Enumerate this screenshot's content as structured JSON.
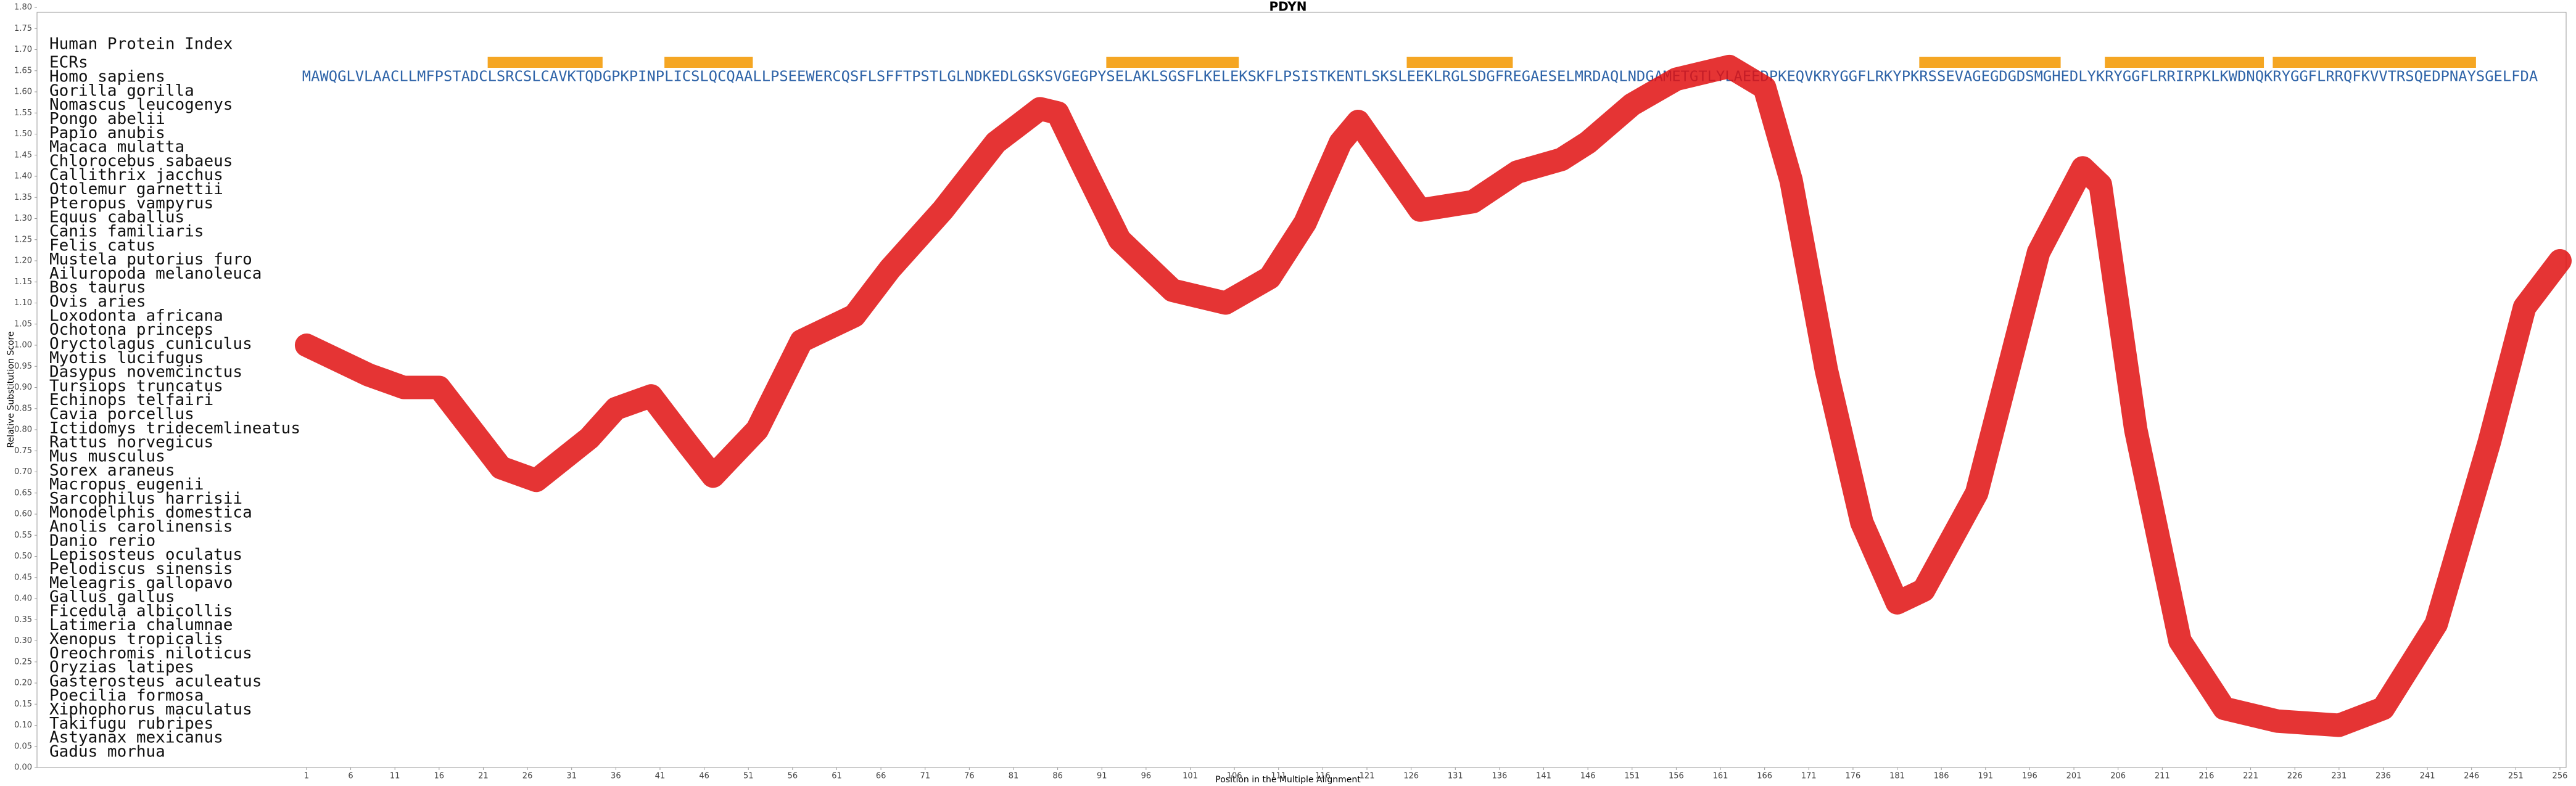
{
  "chart_data": {
    "type": "line",
    "title": "PDYN",
    "xlabel": "Position in the Multiple Alignment",
    "ylabel": "Relative Substitution Score",
    "color": "#e01010",
    "x": [
      1,
      8,
      12,
      16,
      23,
      27,
      33,
      36,
      40,
      44,
      47,
      52,
      57,
      63,
      67,
      73,
      79,
      84,
      86,
      89,
      93,
      99,
      105,
      110,
      114,
      118,
      120,
      124,
      127,
      133,
      138,
      143,
      146,
      151,
      156,
      162,
      166,
      169,
      173,
      177,
      181,
      184,
      190,
      197,
      202,
      204,
      208,
      213,
      218,
      224,
      231,
      236,
      242,
      248,
      252,
      256
    ],
    "values": [
      1.0,
      0.93,
      0.9,
      0.9,
      0.71,
      0.68,
      0.78,
      0.85,
      0.88,
      0.77,
      0.69,
      0.8,
      1.01,
      1.07,
      1.18,
      1.32,
      1.48,
      1.56,
      1.55,
      1.42,
      1.25,
      1.13,
      1.1,
      1.16,
      1.29,
      1.48,
      1.53,
      1.41,
      1.32,
      1.34,
      1.41,
      1.44,
      1.48,
      1.57,
      1.63,
      1.66,
      1.61,
      1.39,
      0.94,
      0.58,
      0.39,
      0.42,
      0.65,
      1.22,
      1.42,
      1.38,
      0.8,
      0.3,
      0.14,
      0.11,
      0.1,
      0.14,
      0.34,
      0.77,
      1.09,
      1.2
    ],
    "xlim": [
      -29.5,
      256.7
    ],
    "ylim": [
      0,
      1.8
    ],
    "xticks": [
      1,
      6,
      11,
      16,
      21,
      26,
      31,
      36,
      41,
      46,
      51,
      56,
      61,
      66,
      71,
      76,
      81,
      86,
      91,
      96,
      101,
      106,
      111,
      116,
      121,
      126,
      131,
      136,
      141,
      146,
      151,
      156,
      161,
      166,
      171,
      176,
      181,
      186,
      191,
      196,
      201,
      206,
      211,
      216,
      221,
      226,
      231,
      236,
      241,
      246,
      251,
      256
    ],
    "yticks": [
      {
        "value": 0,
        "label": "0.00"
      },
      {
        "value": 0.05,
        "label": "0.05"
      },
      {
        "value": 0.1,
        "label": "0.10"
      },
      {
        "value": 0.15,
        "label": "0.15"
      },
      {
        "value": 0.2,
        "label": "0.20"
      },
      {
        "value": 0.25,
        "label": "0.25"
      },
      {
        "value": 0.3,
        "label": "0.30"
      },
      {
        "value": 0.35,
        "label": "0.35"
      },
      {
        "value": 0.4,
        "label": "0.40"
      },
      {
        "value": 0.45,
        "label": "0.45"
      },
      {
        "value": 0.5,
        "label": "0.50"
      },
      {
        "value": 0.55,
        "label": "0.55"
      },
      {
        "value": 0.6,
        "label": "0.60"
      },
      {
        "value": 0.65,
        "label": "0.65"
      },
      {
        "value": 0.7,
        "label": "0.70"
      },
      {
        "value": 0.75,
        "label": "0.75"
      },
      {
        "value": 0.8,
        "label": "0.80"
      },
      {
        "value": 0.85,
        "label": "0.85"
      },
      {
        "value": 0.9,
        "label": "0.90"
      },
      {
        "value": 0.95,
        "label": "0.95"
      },
      {
        "value": 1.0,
        "label": "1.00"
      },
      {
        "value": 1.05,
        "label": "1.05"
      },
      {
        "value": 1.1,
        "label": "1.10"
      },
      {
        "value": 1.15,
        "label": "1.15"
      },
      {
        "value": 1.2,
        "label": "1.20"
      },
      {
        "value": 1.25,
        "label": "1.25"
      },
      {
        "value": 1.3,
        "label": "1.30"
      },
      {
        "value": 1.35,
        "label": "1.35"
      },
      {
        "value": 1.4,
        "label": "1.40"
      },
      {
        "value": 1.45,
        "label": "1.45"
      },
      {
        "value": 1.5,
        "label": "1.50"
      },
      {
        "value": 1.55,
        "label": "1.55"
      },
      {
        "value": 1.6,
        "label": "1.60"
      },
      {
        "value": 1.65,
        "label": "1.65"
      },
      {
        "value": 1.7,
        "label": "1.70"
      },
      {
        "value": 1.75,
        "label": "1.75"
      },
      {
        "value": 1.8,
        "label": "1.80"
      }
    ]
  },
  "alignment": {
    "index_label": "Human Protein Index",
    "ecr_label": "ECRs",
    "ecr_color": "#f5a623",
    "ecr_regions": [
      [
        22,
        34
      ],
      [
        42,
        51
      ],
      [
        92,
        106
      ],
      [
        126,
        137
      ],
      [
        184,
        199
      ],
      [
        205,
        222
      ],
      [
        224,
        246
      ]
    ],
    "species": [
      "Homo sapiens",
      "Gorilla gorilla",
      "Nomascus leucogenys",
      "Pongo abelii",
      "Papio anubis",
      "Macaca mulatta",
      "Chlorocebus sabaeus",
      "Callithrix jacchus",
      "Otolemur garnettii",
      "Pteropus vampyrus",
      "Equus caballus",
      "Canis familiaris",
      "Felis catus",
      "Mustela putorius furo",
      "Ailuropoda melanoleuca",
      "Bos taurus",
      "Ovis aries",
      "Loxodonta africana",
      "Ochotona princeps",
      "Oryctolagus cuniculus",
      "Myotis lucifugus",
      "Dasypus novemcinctus",
      "Tursiops truncatus",
      "Echinops telfairi",
      "Cavia porcellus",
      "Ictidomys tridecemlineatus",
      "Rattus norvegicus",
      "Mus musculus",
      "Sorex araneus",
      "Macropus eugenii",
      "Sarcophilus harrisii",
      "Monodelphis domestica",
      "Anolis carolinensis",
      "Danio rerio",
      "Lepisosteus oculatus",
      "Pelodiscus sinensis",
      "Meleagris gallopavo",
      "Gallus gallus",
      "Ficedula albicollis",
      "Latimeria chalumnae",
      "Xenopus tropicalis",
      "Oreochromis niloticus",
      "Oryzias latipes",
      "Gasterosteus aculeatus",
      "Poecilia formosa",
      "Xiphophorus maculatus",
      "Takifugu rubripes",
      "Astyanax mexicanus",
      "Gadus morhua"
    ],
    "human_sequence": "MAWQGLVLAACLLMFPSTADCLSRCSLCAVKTQDGPKPINPLICSLQCQAALLPSEEWERCQSFLSFFTPSTLGLNDKEDLGSKSVGEGPYSELAKLSGSFLKELEKSKFLPSISTKENTLSKSLEEKLRGLSDGFREGAESELMRDAQLNDGAMETGTLYLAEEDPKEQVKRYGGFLRKYPKRSSEVAGEGDGDSMGHEDLYKRYGGFLRRIRPKLKWDNQKRYGGFLRRQFKVVTRSQEDPNAYSGELFDA"
  }
}
